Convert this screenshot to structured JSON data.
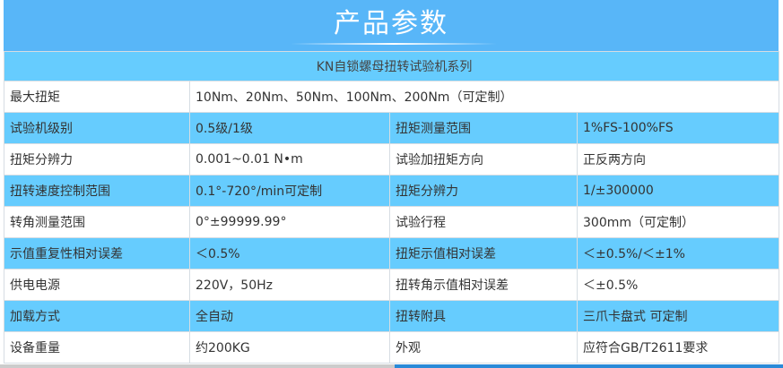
{
  "header": {
    "title": "产品参数"
  },
  "series_title": "KN自锁螺母扭转试验机系列",
  "first_row": {
    "label": "最大扭矩",
    "value": "10Nm、20Nm、50Nm、100Nm、200Nm（可定制）"
  },
  "rows": [
    [
      "试验机级别",
      "0.5级/1级",
      "扭矩测量范围",
      "1%FS-100%FS"
    ],
    [
      "扭矩分辨力",
      "0.001~0.01 N•m",
      "试验加扭矩方向",
      "正反两方向"
    ],
    [
      "扭转速度控制范围",
      "0.1°-720°/min可定制",
      "扭矩分辨力",
      "1/±300000"
    ],
    [
      "转角测量范围",
      "0°±99999.99°",
      "试验行程",
      "300mm（可定制）"
    ],
    [
      "示值重复性相对误差",
      "＜0.5%",
      "扭矩示值相对误差",
      "＜±0.5%/＜±1%"
    ],
    [
      "供电电源",
      "220V，50Hz",
      "扭转角示值相对误差",
      "＜±0.5%"
    ],
    [
      "加载方式",
      "全自动",
      "扭转附具",
      "三爪卡盘式 可定制"
    ],
    [
      "设备重量",
      "约200KG",
      "外观",
      "应符合GB/T2611要求"
    ]
  ]
}
